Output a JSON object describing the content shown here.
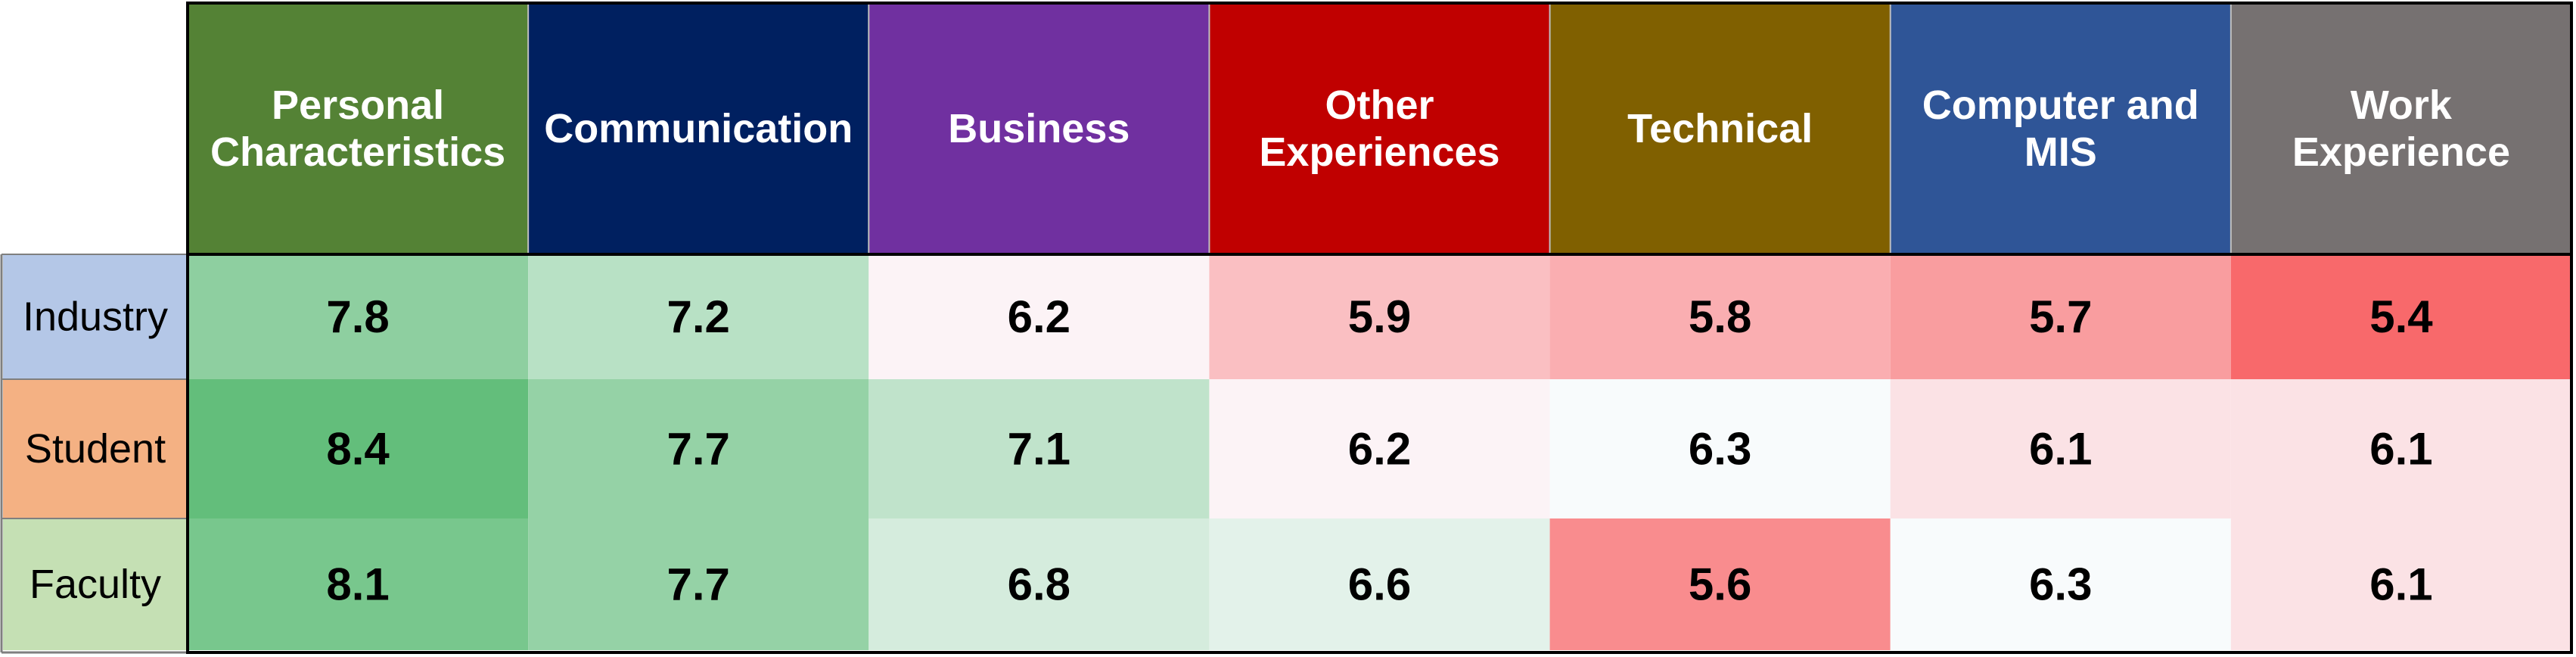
{
  "chart_data": {
    "type": "heatmap",
    "columns": [
      {
        "label_lines": [
          "Personal",
          "Characteristics"
        ],
        "header_color": "#548235"
      },
      {
        "label_lines": [
          "Communication"
        ],
        "header_color": "#002060"
      },
      {
        "label_lines": [
          "Business"
        ],
        "header_color": "#7030A0"
      },
      {
        "label_lines": [
          "Other",
          "Experiences"
        ],
        "header_color": "#C00000"
      },
      {
        "label_lines": [
          "Technical"
        ],
        "header_color": "#806000"
      },
      {
        "label_lines": [
          "Computer and",
          "MIS"
        ],
        "header_color": "#2F5597"
      },
      {
        "label_lines": [
          "Work",
          "Experience"
        ],
        "header_color": "#767171"
      }
    ],
    "rows": [
      {
        "label": "Industry",
        "label_color": "#B4C7E7"
      },
      {
        "label": "Student",
        "label_color": "#F4B183"
      },
      {
        "label": "Faculty",
        "label_color": "#C5E0B4"
      }
    ],
    "values": [
      [
        7.8,
        7.2,
        6.2,
        5.9,
        5.8,
        5.7,
        5.4
      ],
      [
        8.4,
        7.7,
        7.1,
        6.2,
        6.3,
        6.1,
        6.1
      ],
      [
        8.1,
        7.7,
        6.8,
        6.6,
        5.6,
        6.3,
        6.1
      ]
    ],
    "color_scale": {
      "low": "#F8696B",
      "mid": "#FCFCFF",
      "high": "#63BE7B",
      "min": 5.4,
      "mid_value": 6.25,
      "max": 8.4
    }
  }
}
